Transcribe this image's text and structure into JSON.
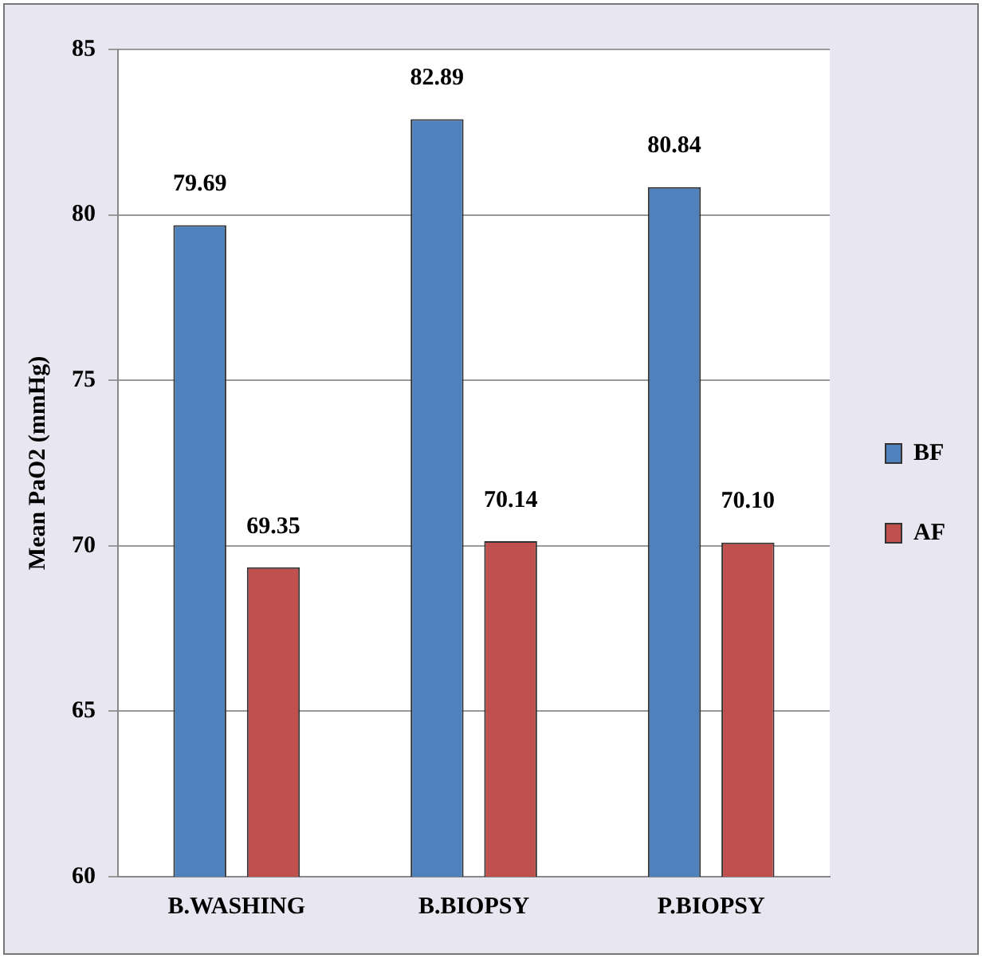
{
  "chart_data": {
    "type": "bar",
    "ylabel": "Mean PaO2 (mmHg)",
    "categories": [
      "B.WASHING",
      "B.BIOPSY",
      "P.BIOPSY"
    ],
    "series": [
      {
        "name": "BF",
        "color": "#4f81bd",
        "values": [
          79.69,
          82.89,
          80.84
        ],
        "value_labels": [
          "79.69",
          "82.89",
          "80.84"
        ]
      },
      {
        "name": "AF",
        "color": "#c0504d",
        "values": [
          69.35,
          70.14,
          70.1
        ],
        "value_labels": [
          "69.35",
          "70.14",
          "70.10"
        ]
      }
    ],
    "ylim": [
      60,
      85
    ],
    "yticks": [
      60,
      65,
      70,
      75,
      80,
      85
    ],
    "grid": "y",
    "legend": "right"
  }
}
